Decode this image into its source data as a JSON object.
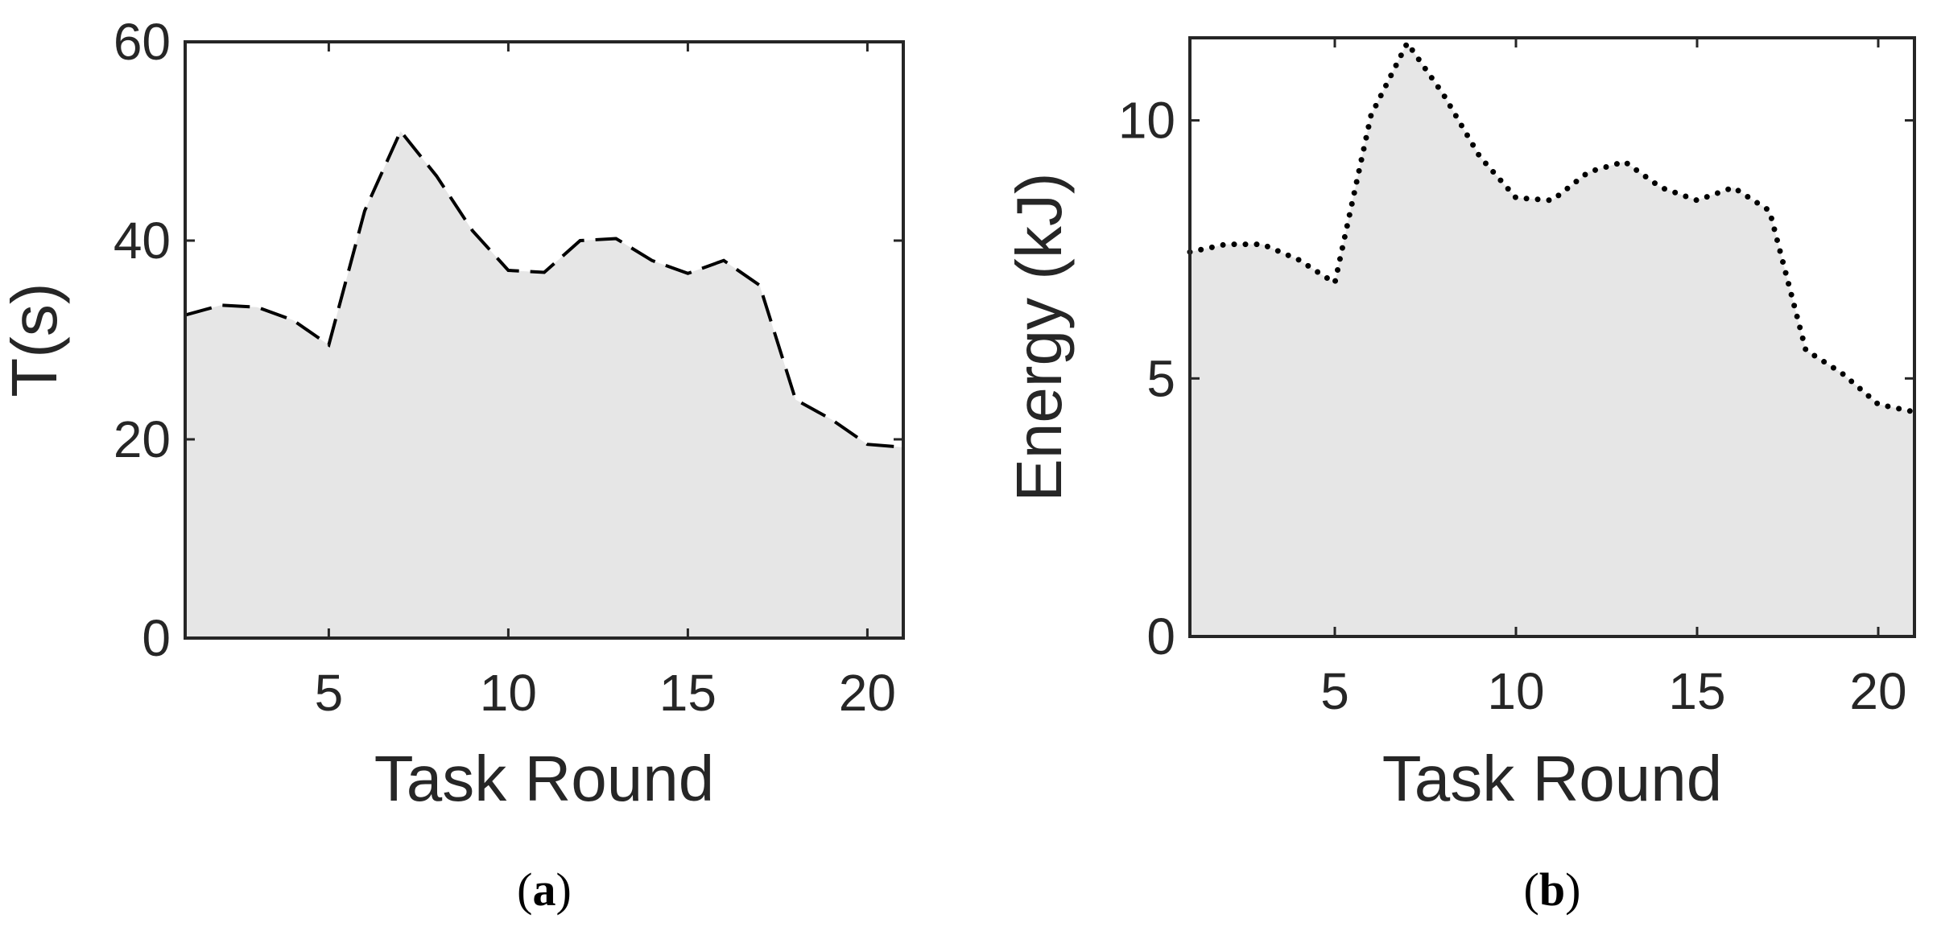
{
  "chart_data": [
    {
      "type": "area",
      "panel_label": {
        "open": "(",
        "letter": "a",
        "close": ")"
      },
      "xlabel": "Task Round",
      "ylabel": "T(s)",
      "xlim": [
        1,
        21
      ],
      "ylim": [
        0,
        60
      ],
      "xticks": [
        5,
        10,
        15,
        20
      ],
      "yticks": [
        0,
        20,
        40,
        60
      ],
      "line_style": "dashed",
      "fill_color": "#e6e6e6",
      "line_color": "#000000",
      "x": [
        1,
        2,
        3,
        4,
        5,
        6,
        7,
        8,
        9,
        10,
        11,
        12,
        13,
        14,
        15,
        16,
        17,
        18,
        19,
        20,
        21
      ],
      "values": [
        32.5,
        33.5,
        33.3,
        32.0,
        29.5,
        43.0,
        51.0,
        46.5,
        41.0,
        37.0,
        36.8,
        40.0,
        40.2,
        38.0,
        36.7,
        38.0,
        35.5,
        24.0,
        22.0,
        19.5,
        19.2
      ]
    },
    {
      "type": "area",
      "panel_label": {
        "open": "(",
        "letter": "b",
        "close": ")"
      },
      "xlabel": "Task Round",
      "ylabel": "Energy (kJ)",
      "xlim": [
        1,
        21
      ],
      "ylim": [
        0,
        11.6
      ],
      "xticks": [
        5,
        10,
        15,
        20
      ],
      "yticks": [
        0,
        5,
        10
      ],
      "line_style": "dotted",
      "fill_color": "#e6e6e6",
      "line_color": "#000000",
      "x": [
        1,
        2,
        3,
        4,
        5,
        6,
        7,
        8,
        9,
        10,
        11,
        12,
        13,
        14,
        15,
        16,
        17,
        18,
        19,
        20,
        21
      ],
      "values": [
        7.45,
        7.6,
        7.6,
        7.3,
        6.85,
        10.1,
        11.5,
        10.5,
        9.3,
        8.5,
        8.45,
        9.0,
        9.2,
        8.7,
        8.45,
        8.7,
        8.25,
        5.55,
        5.1,
        4.5,
        4.35
      ]
    }
  ]
}
